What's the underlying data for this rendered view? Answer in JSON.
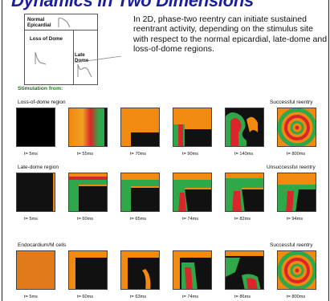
{
  "title": "Dynamics in Two Dimensions",
  "diagram": {
    "normal_epicardial": "Normal Epicardial",
    "loss_of_dome": "Loss of Dome",
    "late_dome": "Late Dome"
  },
  "description": "In 2D, phase-two reentry can initiate sustained reentrant activity, depending on the stimulus site with respect to the normal epicardial, late-dome and loss-of-dome regions.",
  "stimulation_label": "Stimulation from:",
  "rows": [
    {
      "label": "Loss-of-dome region",
      "result": "Successful reentry",
      "times": [
        "t= 5ms",
        "t= 55ms",
        "t= 70ms",
        "t= 90ms",
        "t= 140ms",
        "t= 800ms"
      ]
    },
    {
      "label": "Late-dome region",
      "result": "Unsuccessful reentry",
      "times": [
        "t= 5ms",
        "t= 60ms",
        "t= 65ms",
        "t= 74ms",
        "t= 82ms",
        "t= 94ms"
      ]
    },
    {
      "label": "Endocardium/M cells",
      "result": "Successful reentry",
      "times": [
        "t= 5ms",
        "t= 60ms",
        "t= 63ms",
        "t= 74ms",
        "t= 86ms",
        "t= 800ms"
      ]
    }
  ],
  "colors": {
    "title": "#1b1f9c",
    "stimulation_label": "#1a7a1a",
    "excited": "#f08a10",
    "resting": "#000000",
    "wavefront_green": "#2fa84a",
    "wavefront_red": "#d8262a"
  }
}
